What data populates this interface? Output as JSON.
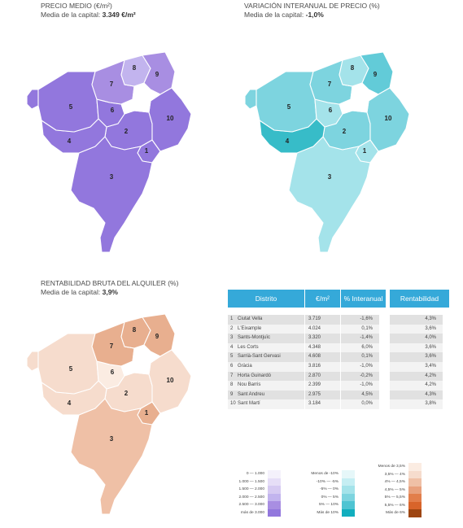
{
  "panel_price": {
    "title": "PRECIO MEDIO (€/m²)",
    "sub_prefix": "Media de la capital: ",
    "sub_value": "3.349 €/m²"
  },
  "panel_var": {
    "title": "VARIACIÓN INTERANUAL DE PRECIO (%)",
    "sub_prefix": "Media de la capital: ",
    "sub_value": "-1,0%"
  },
  "panel_rent": {
    "title": "RENTABILIDAD BRUTA DEL ALQUILER (%)",
    "sub_prefix": "Media de la capital: ",
    "sub_value": "3,9%"
  },
  "districts": [
    {
      "num": "1",
      "name": "Ciutat Vella",
      "price": "3.719",
      "var": "-1,6%",
      "rent": "4,3%"
    },
    {
      "num": "2",
      "name": "L'Eixample",
      "price": "4.024",
      "var": "0,1%",
      "rent": "3,6%"
    },
    {
      "num": "3",
      "name": "Sants-Montjuïc",
      "price": "3.320",
      "var": "-1,4%",
      "rent": "4,0%"
    },
    {
      "num": "4",
      "name": "Les Corts",
      "price": "4.348",
      "var": "6,0%",
      "rent": "3,6%"
    },
    {
      "num": "5",
      "name": "Sarrià-Sant Gervasi",
      "price": "4.608",
      "var": "0,1%",
      "rent": "3,6%"
    },
    {
      "num": "6",
      "name": "Gràcia",
      "price": "3.816",
      "var": "-1,0%",
      "rent": "3,4%"
    },
    {
      "num": "7",
      "name": "Horta Guinardó",
      "price": "2.870",
      "var": "-0,2%",
      "rent": "4,2%"
    },
    {
      "num": "8",
      "name": "Nou Barris",
      "price": "2.399",
      "var": "-1,0%",
      "rent": "4,2%"
    },
    {
      "num": "9",
      "name": "Sant Andreu",
      "price": "2.975",
      "var": "4,5%",
      "rent": "4,3%"
    },
    {
      "num": "10",
      "name": "Sant Martí",
      "price": "3.184",
      "var": "0,0%",
      "rent": "3,8%"
    }
  ],
  "table": {
    "h_district": "Distrito",
    "h_price": "€/m²",
    "h_var": "% Interanual",
    "h_rent": "Rentabilidad"
  },
  "map_colors": {
    "price": {
      "1": "#9277dd",
      "2": "#9277dd",
      "3": "#9277dd",
      "4": "#9277dd",
      "5": "#9277dd",
      "6": "#9277dd",
      "7": "#a88ee2",
      "8": "#c2b4ee",
      "9": "#a88ee2",
      "10": "#9277dd"
    },
    "var": {
      "1": "#a4e3ea",
      "2": "#7dd4df",
      "3": "#a4e3ea",
      "4": "#37bcc8",
      "5": "#7dd4df",
      "6": "#a4e3ea",
      "7": "#7dd4df",
      "8": "#a4e3ea",
      "9": "#62cbd8",
      "10": "#7dd4df"
    },
    "rent": {
      "1": "#e8af8f",
      "2": "#f6dccd",
      "3": "#efc0a6",
      "4": "#f6dccd",
      "5": "#f6dccd",
      "6": "#fbece2",
      "7": "#e8af8f",
      "8": "#e8af8f",
      "9": "#e8af8f",
      "10": "#f6dccd"
    }
  },
  "legend_price": {
    "rows": [
      {
        "label": "0   —   1.000",
        "color": "#f4f1fb"
      },
      {
        "label": "1.000  — 1.500",
        "color": "#e6def7"
      },
      {
        "label": "1.500  — 2.000",
        "color": "#d6caf2"
      },
      {
        "label": "2.000  — 2.500",
        "color": "#c2b4ee"
      },
      {
        "label": "2.500  — 3.000",
        "color": "#a88ee2"
      },
      {
        "label": "más de 3.000",
        "color": "#9277dd"
      }
    ]
  },
  "legend_var": {
    "rows": [
      {
        "label": "Menos de -10%",
        "color": "#e6f7f9"
      },
      {
        "label": "-10%  —   -5%",
        "color": "#c5eef3"
      },
      {
        "label": "-5%   —    0%",
        "color": "#a4e3ea"
      },
      {
        "label": "0%    —    5%",
        "color": "#7dd4df"
      },
      {
        "label": "5%    —   10%",
        "color": "#4fc4d2"
      },
      {
        "label": "Más de 10%",
        "color": "#12aebe"
      }
    ]
  },
  "legend_rent": {
    "rows": [
      {
        "label": "Menos de 3,5%",
        "color": "#fbece2"
      },
      {
        "label": "3,5%  —   4%",
        "color": "#f6dccd"
      },
      {
        "label": "4%   —  4,5%",
        "color": "#efc0a6"
      },
      {
        "label": "4,5%  —   5%",
        "color": "#e8a07c"
      },
      {
        "label": "5%   —  5,5%",
        "color": "#e27e4b"
      },
      {
        "label": "5,5%  —   6%",
        "color": "#d8642a"
      },
      {
        "label": "Más de 6%",
        "color": "#9e4612"
      }
    ]
  }
}
